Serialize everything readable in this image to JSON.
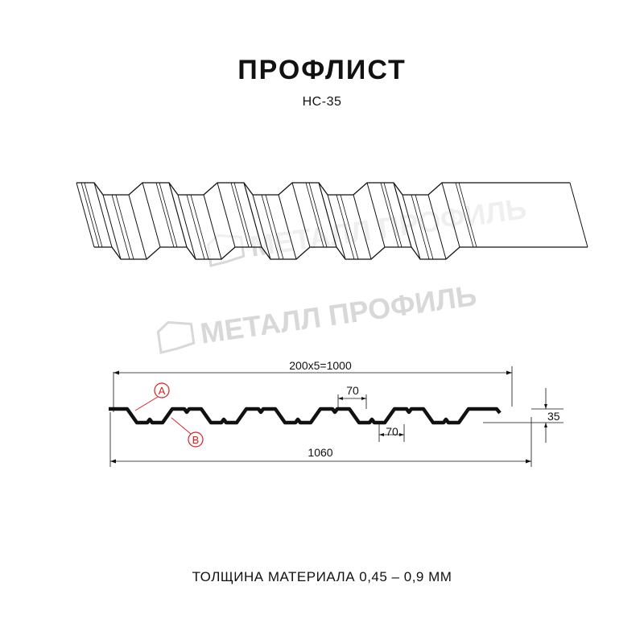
{
  "header": {
    "title": "ПРОФЛИСТ",
    "model": "НС-35"
  },
  "watermark": {
    "text": "МЕТАЛЛ ПРОФИЛЬ"
  },
  "drawing": {
    "pitch_dimension": "200x5=1000",
    "top_flat_dimension": "70",
    "bottom_flat_dimension": "70",
    "height_dimension": "35",
    "overall_width_dimension": "1060",
    "marker_a": "A",
    "marker_b": "B",
    "colors": {
      "line": "#111111",
      "marker": "#e01b1b",
      "watermark": "#d8d8d8"
    }
  },
  "footer": {
    "thickness_note": "ТОЛЩИНА МАТЕРИАЛА 0,45 – 0,9 ММ"
  }
}
